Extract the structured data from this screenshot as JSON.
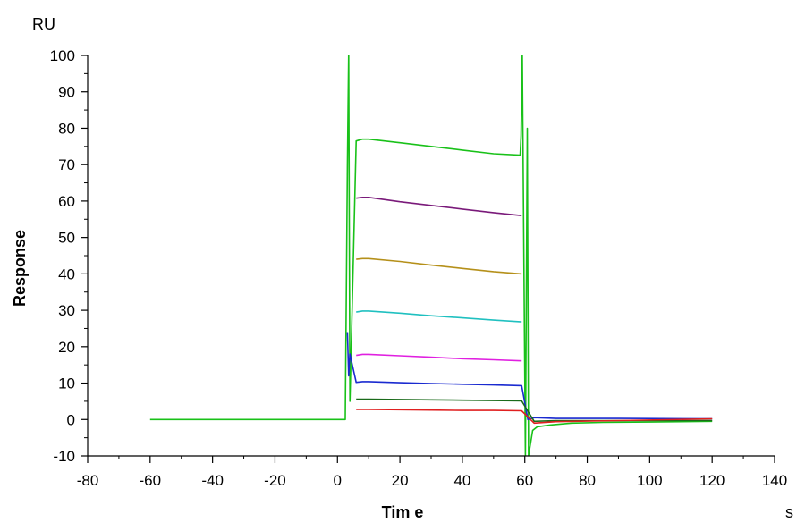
{
  "chart_data": {
    "type": "line",
    "title": "",
    "xlabel": "Tim e",
    "ylabel": "Response",
    "x_unit": "s",
    "y_unit": "RU",
    "xlim": [
      -80,
      140
    ],
    "ylim": [
      -10,
      100
    ],
    "x_ticks": [
      "-80",
      "-60",
      "-40",
      "-20",
      "0",
      "20",
      "40",
      "60",
      "80",
      "100",
      "120",
      "140"
    ],
    "y_ticks": [
      "-10",
      "0",
      "10",
      "20",
      "30",
      "40",
      "50",
      "60",
      "70",
      "80",
      "90",
      "100"
    ],
    "grid": false,
    "legend": "none",
    "series": [
      {
        "color": "#19c119",
        "x": [
          -60,
          -50,
          -40,
          -30,
          -20,
          -10,
          0,
          2.5,
          3.2,
          3.6,
          4.0,
          6,
          8,
          10,
          20,
          30,
          40,
          50,
          58.5,
          58.8,
          59.2,
          60.2,
          60.8,
          61.2,
          62.5,
          64,
          68,
          75,
          85,
          100,
          120
        ],
        "y": [
          0,
          0,
          0,
          0,
          0,
          0,
          0,
          0,
          70,
          101,
          5,
          76.5,
          77,
          77,
          76,
          75,
          74,
          73,
          72.6,
          78,
          101,
          -10,
          80,
          -10,
          -3,
          -2,
          -1.5,
          -1,
          -0.8,
          -0.7,
          -0.5
        ]
      },
      {
        "color": "#7a1a7a",
        "x": [
          6,
          8,
          10,
          20,
          30,
          40,
          50,
          59
        ],
        "y": [
          60.8,
          61,
          61,
          59.8,
          58.8,
          57.8,
          56.8,
          56
        ]
      },
      {
        "color": "#b5901a",
        "x": [
          6,
          8,
          10,
          20,
          30,
          40,
          50,
          59
        ],
        "y": [
          44,
          44.2,
          44.2,
          43.4,
          42.4,
          41.5,
          40.6,
          40
        ]
      },
      {
        "color": "#20c0c0",
        "x": [
          6,
          8,
          10,
          20,
          30,
          40,
          50,
          59
        ],
        "y": [
          29.5,
          29.8,
          29.8,
          29.2,
          28.5,
          27.9,
          27.3,
          26.8
        ]
      },
      {
        "color": "#e020e0",
        "x": [
          6,
          8,
          10,
          20,
          30,
          40,
          50,
          59
        ],
        "y": [
          17.6,
          17.9,
          17.9,
          17.5,
          17.1,
          16.7,
          16.4,
          16.1
        ]
      },
      {
        "color": "#1a2ad0",
        "x": [
          3.2,
          3.6,
          4.0,
          6,
          8,
          10,
          20,
          30,
          40,
          50,
          59,
          61,
          63,
          70,
          90,
          120
        ],
        "y": [
          24,
          12,
          18,
          10.2,
          10.4,
          10.4,
          10.1,
          9.9,
          9.7,
          9.5,
          9.3,
          0,
          0.5,
          0.3,
          0.3,
          0.2
        ]
      },
      {
        "color": "#1a6a1a",
        "x": [
          6,
          10,
          20,
          30,
          40,
          50,
          59,
          63,
          70,
          90,
          120
        ],
        "y": [
          5.6,
          5.6,
          5.5,
          5.4,
          5.3,
          5.2,
          5.1,
          -0.5,
          -0.3,
          -0.3,
          -0.3
        ]
      },
      {
        "color": "#e02020",
        "x": [
          6,
          10,
          20,
          30,
          40,
          50,
          59,
          63,
          70,
          90,
          120
        ],
        "y": [
          2.8,
          2.8,
          2.7,
          2.6,
          2.5,
          2.5,
          2.4,
          -1,
          -0.6,
          -0.3,
          0.2
        ]
      }
    ]
  }
}
